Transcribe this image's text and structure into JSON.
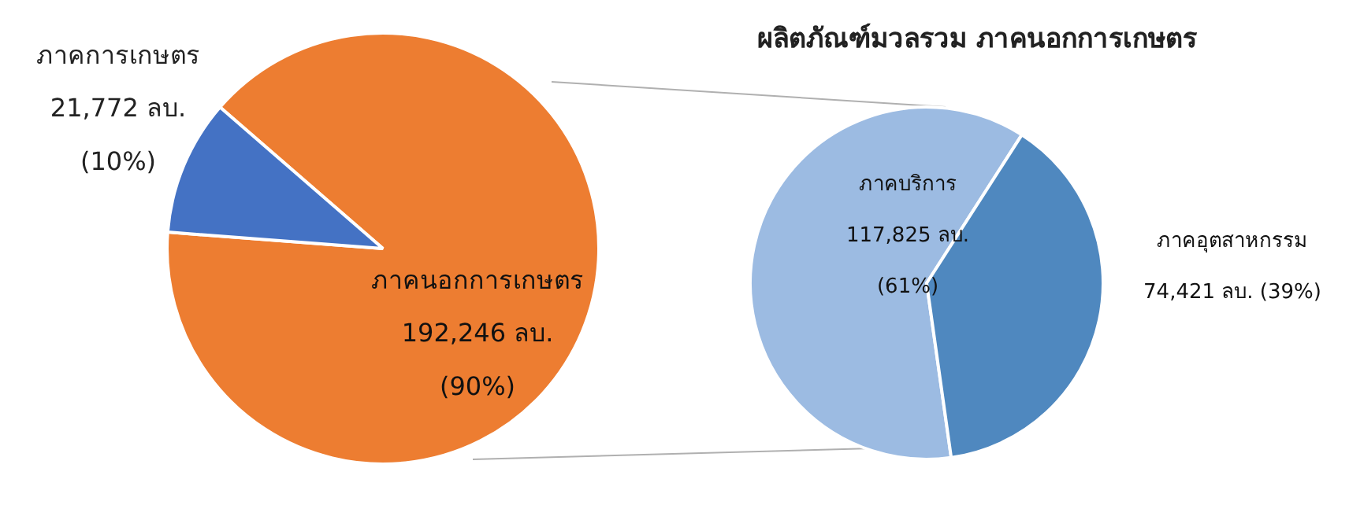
{
  "chart_data": [
    {
      "type": "pie",
      "categories": [
        "ภาคนอกการเกษตร",
        "ภาคการเกษตร"
      ],
      "values": [
        192246,
        21772
      ],
      "colors": [
        "#ed7d31",
        "#4472c4"
      ],
      "value_labels": [
        "192,246 ลบ.\n(90%)",
        "21,772 ลบ.\n(10%)"
      ]
    },
    {
      "type": "pie",
      "title": "ผลิตภัณฑ์มวลรวม ภาคนอกการเกษตร",
      "categories": [
        "ภาคบริการ",
        "ภาคอุตสาหกรรม"
      ],
      "values": [
        117825,
        74421
      ],
      "colors": [
        "#9cbbe2",
        "#4f88bf"
      ],
      "value_labels": [
        "117,825 ลบ.\n(61%)",
        "74,421 ลบ. (39%)"
      ]
    }
  ]
}
